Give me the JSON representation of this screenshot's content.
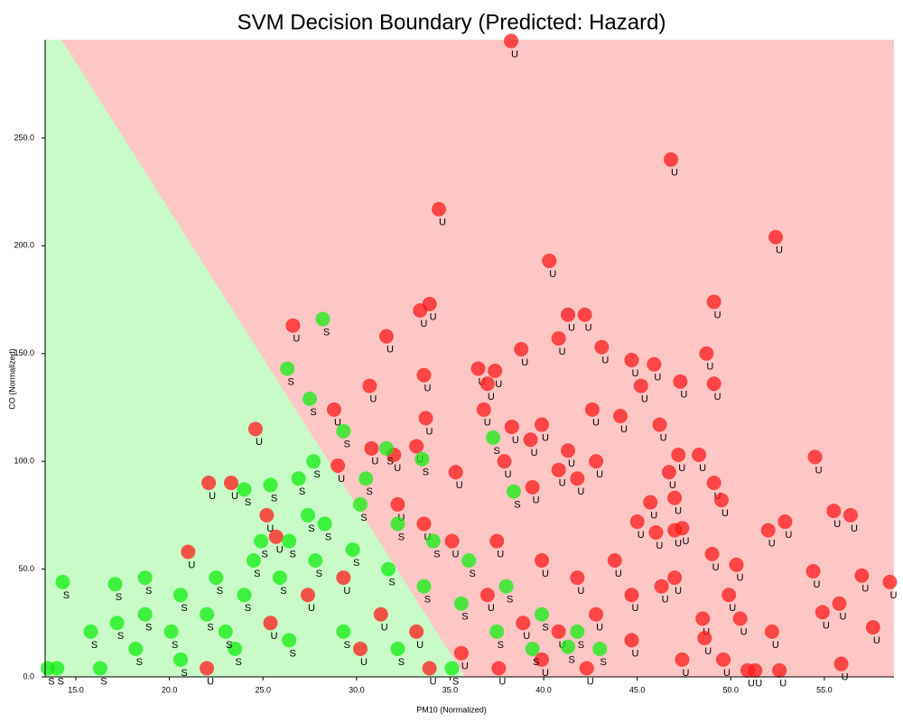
{
  "chart_data": {
    "type": "scatter",
    "title": "SVM Decision Boundary (Predicted: Hazard)",
    "xlabel": "PM10 (Normalized)",
    "ylabel": "CO (Normalized)",
    "xlim": [
      13.36,
      58.72
    ],
    "ylim": [
      0,
      295.6
    ],
    "xticks": [
      {
        "value": 15,
        "label": "15.0"
      },
      {
        "value": 20,
        "label": "20.0"
      },
      {
        "value": 25,
        "label": "25.0"
      },
      {
        "value": 30,
        "label": "30.0"
      },
      {
        "value": 35,
        "label": "35.0"
      },
      {
        "value": 40,
        "label": "40.0"
      },
      {
        "value": 45,
        "label": "45.0"
      },
      {
        "value": 50,
        "label": "50.0"
      },
      {
        "value": 55,
        "label": "55.0"
      }
    ],
    "yticks": [
      {
        "value": 0,
        "label": "0.0"
      },
      {
        "value": 50,
        "label": "50.0"
      },
      {
        "value": 100,
        "label": "100.0"
      },
      {
        "value": 150,
        "label": "150.0"
      },
      {
        "value": 200,
        "label": "200.0"
      },
      {
        "value": 250,
        "label": "250.0"
      }
    ],
    "series": [
      {
        "name": "U",
        "color": "#ff1a1a",
        "x": [
          38.26,
          46.8,
          34.4,
          52.4,
          40.3,
          26.6,
          31.6,
          30.7,
          24.6,
          28.8,
          33.4,
          33.9,
          41.3,
          42.2,
          38.8,
          40.8,
          43.1,
          49.1,
          48.7,
          49.1,
          45.9,
          44.7,
          45.2,
          47.3,
          33.6,
          36.5,
          37.4,
          37.0,
          36.8,
          33.7,
          42.6,
          44.1,
          46.2,
          52.0,
          52.9,
          55.5,
          56.4,
          54.5,
          54.4,
          57.0,
          58.5,
          54.9,
          55.8,
          57.6,
          55.9,
          52.2,
          52.6,
          50.3,
          49.0,
          47.0,
          48.3,
          47.2,
          46.7,
          49.1,
          49.5,
          47.0,
          45.7,
          45.0,
          46.0,
          47.4,
          49.9,
          50.5,
          48.5,
          47.0,
          46.3,
          47.4,
          49.6,
          50.9,
          51.3,
          48.6,
          22.1,
          23.3,
          21.0,
          25.2,
          25.7,
          29.0,
          30.8,
          32.0,
          33.2,
          35.3,
          37.9,
          39.3,
          41.3,
          38.3,
          39.9,
          40.8,
          41.8,
          42.8,
          39.4,
          32.2,
          33.6,
          35.1,
          37.5,
          39.9,
          41.8,
          43.8,
          44.7,
          42.8,
          40.8,
          38.9,
          37.0,
          35.6,
          33.2,
          31.3,
          29.3,
          27.4,
          25.4,
          22.0,
          39.9,
          42.3,
          44.7,
          37.6,
          33.9,
          30.2
        ],
        "values": [
          295,
          240,
          217,
          204,
          193,
          163,
          158,
          135,
          115,
          124,
          170,
          173,
          168,
          168,
          152,
          157,
          153,
          174,
          150,
          136,
          145,
          147,
          135,
          137,
          140,
          143,
          142,
          136,
          124,
          120,
          124,
          121,
          117,
          68,
          72,
          77,
          75,
          102,
          49,
          47,
          44,
          30,
          34,
          23,
          6,
          21,
          3,
          52,
          57,
          68,
          103,
          103,
          95,
          90,
          82,
          83,
          81,
          72,
          67,
          69,
          38,
          27,
          27,
          46,
          42,
          8,
          8,
          3,
          3,
          18,
          90,
          90,
          58,
          75,
          65,
          98,
          106,
          103,
          107,
          95,
          100,
          110,
          105,
          116,
          117,
          96,
          92,
          100,
          88,
          80,
          71,
          63,
          63,
          54,
          46,
          54,
          38,
          29,
          21,
          25,
          38,
          11,
          21,
          29,
          46,
          38,
          25,
          4,
          8,
          4,
          17,
          4,
          4,
          13
        ]
      },
      {
        "name": "S",
        "color": "#11ee11",
        "x": [
          13.5,
          14.0,
          14.3,
          17.1,
          18.7,
          28.2,
          26.3,
          27.5,
          29.3,
          31.6,
          33.5,
          37.3,
          24.0,
          25.4,
          26.9,
          27.7,
          30.5,
          38.4,
          15.8,
          17.2,
          18.7,
          20.6,
          22.5,
          24.5,
          26.4,
          28.3,
          30.2,
          32.2,
          34.1,
          36.0,
          38.0,
          39.9,
          41.8,
          16.3,
          18.2,
          20.1,
          22.0,
          24.0,
          25.9,
          27.8,
          29.8,
          31.7,
          33.6,
          35.6,
          37.5,
          39.4,
          20.6,
          23.5,
          26.4,
          29.3,
          32.2,
          35.1,
          23.0,
          24.9,
          27.4,
          41.3,
          43.0
        ],
        "values": [
          4,
          4,
          44,
          43,
          46,
          166,
          143,
          129,
          114,
          106,
          101,
          111,
          87,
          89,
          92,
          100,
          92,
          86,
          21,
          25,
          29,
          38,
          46,
          54,
          63,
          71,
          80,
          71,
          63,
          54,
          42,
          29,
          21,
          4,
          13,
          21,
          29,
          38,
          46,
          54,
          59,
          50,
          42,
          34,
          21,
          13,
          8,
          13,
          17,
          21,
          13,
          4,
          21,
          63,
          75,
          14,
          13
        ]
      }
    ]
  }
}
